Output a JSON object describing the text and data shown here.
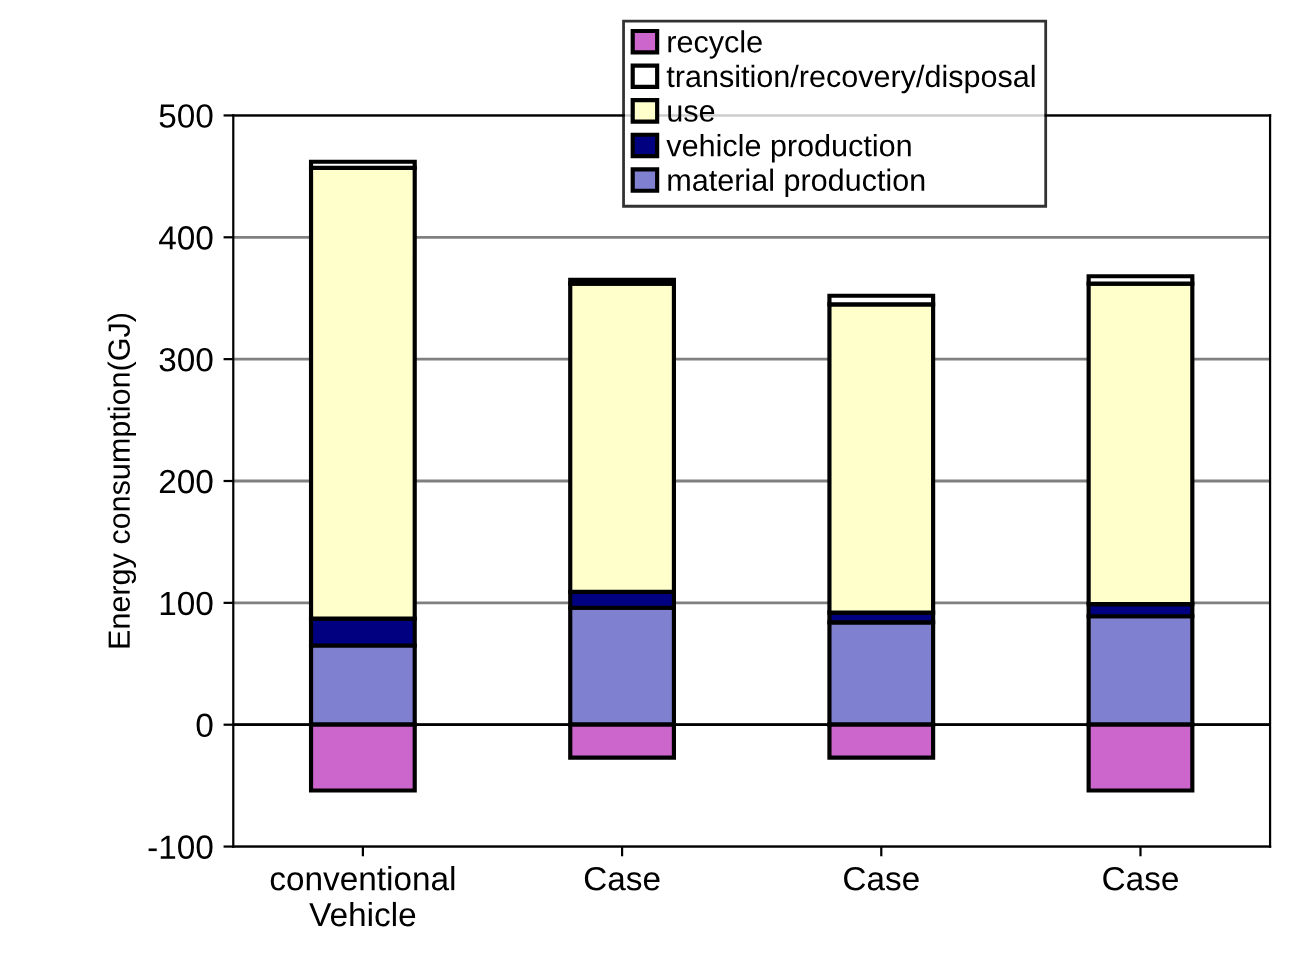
{
  "chart_data": {
    "type": "bar",
    "stacked": true,
    "ylabel": "Energy consumption(GJ)",
    "categories": [
      "conventional\nVehicle",
      "Case",
      "Case",
      "Case"
    ],
    "series": [
      {
        "name": "material production",
        "color": "#8080d0",
        "values": [
          65,
          96,
          84,
          89
        ]
      },
      {
        "name": "vehicle production",
        "color": "#000080",
        "values": [
          22,
          13,
          8,
          10
        ]
      },
      {
        "name": "use",
        "color": "#ffffcc",
        "values": [
          370,
          253,
          253,
          263
        ]
      },
      {
        "name": "transition/recovery/disposal",
        "color": "#ffffff",
        "values": [
          5,
          3,
          7,
          6
        ]
      },
      {
        "name": "recycle",
        "color": "#cc66cc",
        "values": [
          -54,
          -27,
          -27,
          -54
        ]
      }
    ],
    "ylim": [
      -100,
      500
    ],
    "yticks": [
      -100,
      0,
      100,
      200,
      300,
      400,
      500
    ],
    "grid": "y",
    "legend": "top"
  }
}
